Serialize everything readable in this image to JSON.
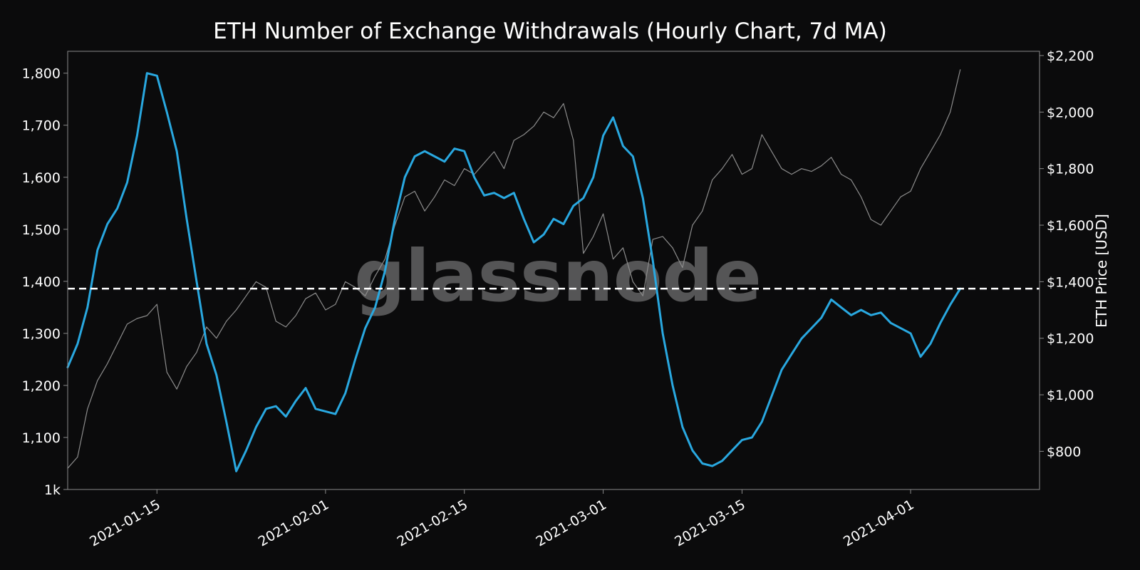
{
  "chart_data": {
    "type": "line",
    "title": "ETH Number of Exchange Withdrawals (Hourly Chart, 7d MA)",
    "watermark": "glassnode",
    "xlabel": "",
    "ylabel_left": "",
    "ylabel_right": "ETH Price [USD]",
    "grid": false,
    "x_range": [
      "2021-01-06",
      "2021-04-14"
    ],
    "x_ticks": [
      "2021-01-15",
      "2021-02-01",
      "2021-02-15",
      "2021-03-01",
      "2021-03-15",
      "2021-04-01"
    ],
    "y_left": {
      "ylim": [
        1000,
        1842
      ],
      "ticks": [
        1000,
        1100,
        1200,
        1300,
        1400,
        1500,
        1600,
        1700,
        1800
      ],
      "tick_labels": [
        "1k",
        "1,100",
        "1,200",
        "1,300",
        "1,400",
        "1,500",
        "1,600",
        "1,700",
        "1,800"
      ]
    },
    "y_right": {
      "ylim": [
        665,
        2215
      ],
      "ticks": [
        800,
        1000,
        1200,
        1400,
        1600,
        1800,
        2000,
        2200
      ],
      "tick_labels": [
        "$800",
        "$1,000",
        "$1,200",
        "$1,400",
        "$1,600",
        "$1,800",
        "$2,000",
        "$2,200"
      ]
    },
    "reference_line": {
      "axis": "left",
      "value": 1386,
      "style": "dashed",
      "color": "#ffffff"
    },
    "colors": {
      "background": "#0b0b0c",
      "withdrawals": "#29a8e0",
      "price": "#8c8c8c",
      "axes": "#8a8a8a",
      "text": "#ffffff",
      "watermark": "#5a5a5a"
    },
    "series": [
      {
        "axis": "left",
        "color": "#29a8e0",
        "points": [
          [
            "2021-01-06",
            1235
          ],
          [
            "2021-01-07",
            1280
          ],
          [
            "2021-01-08",
            1350
          ],
          [
            "2021-01-09",
            1460
          ],
          [
            "2021-01-10",
            1510
          ],
          [
            "2021-01-11",
            1540
          ],
          [
            "2021-01-12",
            1590
          ],
          [
            "2021-01-13",
            1680
          ],
          [
            "2021-01-14",
            1800
          ],
          [
            "2021-01-15",
            1795
          ],
          [
            "2021-01-16",
            1725
          ],
          [
            "2021-01-17",
            1650
          ],
          [
            "2021-01-18",
            1520
          ],
          [
            "2021-01-19",
            1400
          ],
          [
            "2021-01-20",
            1280
          ],
          [
            "2021-01-21",
            1220
          ],
          [
            "2021-01-22",
            1130
          ],
          [
            "2021-01-23",
            1035
          ],
          [
            "2021-01-24",
            1075
          ],
          [
            "2021-01-25",
            1120
          ],
          [
            "2021-01-26",
            1155
          ],
          [
            "2021-01-27",
            1160
          ],
          [
            "2021-01-28",
            1140
          ],
          [
            "2021-01-29",
            1170
          ],
          [
            "2021-01-30",
            1195
          ],
          [
            "2021-01-31",
            1155
          ],
          [
            "2021-02-01",
            1150
          ],
          [
            "2021-02-02",
            1145
          ],
          [
            "2021-02-03",
            1185
          ],
          [
            "2021-02-04",
            1250
          ],
          [
            "2021-02-05",
            1310
          ],
          [
            "2021-02-06",
            1350
          ],
          [
            "2021-02-07",
            1420
          ],
          [
            "2021-02-08",
            1520
          ],
          [
            "2021-02-09",
            1600
          ],
          [
            "2021-02-10",
            1640
          ],
          [
            "2021-02-11",
            1650
          ],
          [
            "2021-02-12",
            1640
          ],
          [
            "2021-02-13",
            1630
          ],
          [
            "2021-02-14",
            1655
          ],
          [
            "2021-02-15",
            1650
          ],
          [
            "2021-02-16",
            1600
          ],
          [
            "2021-02-17",
            1565
          ],
          [
            "2021-02-18",
            1570
          ],
          [
            "2021-02-19",
            1560
          ],
          [
            "2021-02-20",
            1570
          ],
          [
            "2021-02-21",
            1520
          ],
          [
            "2021-02-22",
            1475
          ],
          [
            "2021-02-23",
            1490
          ],
          [
            "2021-02-24",
            1520
          ],
          [
            "2021-02-25",
            1510
          ],
          [
            "2021-02-26",
            1545
          ],
          [
            "2021-02-27",
            1560
          ],
          [
            "2021-02-28",
            1600
          ],
          [
            "2021-03-01",
            1680
          ],
          [
            "2021-03-02",
            1715
          ],
          [
            "2021-03-03",
            1660
          ],
          [
            "2021-03-04",
            1640
          ],
          [
            "2021-03-05",
            1560
          ],
          [
            "2021-03-06",
            1440
          ],
          [
            "2021-03-07",
            1300
          ],
          [
            "2021-03-08",
            1200
          ],
          [
            "2021-03-09",
            1120
          ],
          [
            "2021-03-10",
            1075
          ],
          [
            "2021-03-11",
            1050
          ],
          [
            "2021-03-12",
            1045
          ],
          [
            "2021-03-13",
            1055
          ],
          [
            "2021-03-14",
            1075
          ],
          [
            "2021-03-15",
            1095
          ],
          [
            "2021-03-16",
            1100
          ],
          [
            "2021-03-17",
            1130
          ],
          [
            "2021-03-18",
            1180
          ],
          [
            "2021-03-19",
            1230
          ],
          [
            "2021-03-20",
            1260
          ],
          [
            "2021-03-21",
            1290
          ],
          [
            "2021-03-22",
            1310
          ],
          [
            "2021-03-23",
            1330
          ],
          [
            "2021-03-24",
            1365
          ],
          [
            "2021-03-25",
            1350
          ],
          [
            "2021-03-26",
            1335
          ],
          [
            "2021-03-27",
            1345
          ],
          [
            "2021-03-28",
            1335
          ],
          [
            "2021-03-29",
            1340
          ],
          [
            "2021-03-30",
            1320
          ],
          [
            "2021-03-31",
            1310
          ],
          [
            "2021-04-01",
            1300
          ],
          [
            "2021-04-02",
            1255
          ],
          [
            "2021-04-03",
            1280
          ],
          [
            "2021-04-04",
            1320
          ],
          [
            "2021-04-05",
            1355
          ],
          [
            "2021-04-06",
            1386
          ]
        ]
      },
      {
        "axis": "right",
        "color": "#8c8c8c",
        "points": [
          [
            "2021-01-06",
            740
          ],
          [
            "2021-01-07",
            780
          ],
          [
            "2021-01-08",
            950
          ],
          [
            "2021-01-09",
            1050
          ],
          [
            "2021-01-10",
            1110
          ],
          [
            "2021-01-11",
            1180
          ],
          [
            "2021-01-12",
            1250
          ],
          [
            "2021-01-13",
            1270
          ],
          [
            "2021-01-14",
            1280
          ],
          [
            "2021-01-15",
            1320
          ],
          [
            "2021-01-16",
            1080
          ],
          [
            "2021-01-17",
            1020
          ],
          [
            "2021-01-18",
            1100
          ],
          [
            "2021-01-19",
            1150
          ],
          [
            "2021-01-20",
            1240
          ],
          [
            "2021-01-21",
            1200
          ],
          [
            "2021-01-22",
            1260
          ],
          [
            "2021-01-23",
            1300
          ],
          [
            "2021-01-24",
            1350
          ],
          [
            "2021-01-25",
            1400
          ],
          [
            "2021-01-26",
            1380
          ],
          [
            "2021-01-27",
            1260
          ],
          [
            "2021-01-28",
            1240
          ],
          [
            "2021-01-29",
            1280
          ],
          [
            "2021-01-30",
            1340
          ],
          [
            "2021-01-31",
            1360
          ],
          [
            "2021-02-01",
            1300
          ],
          [
            "2021-02-02",
            1320
          ],
          [
            "2021-02-03",
            1400
          ],
          [
            "2021-02-04",
            1380
          ],
          [
            "2021-02-05",
            1350
          ],
          [
            "2021-02-06",
            1420
          ],
          [
            "2021-02-07",
            1480
          ],
          [
            "2021-02-08",
            1600
          ],
          [
            "2021-02-09",
            1700
          ],
          [
            "2021-02-10",
            1720
          ],
          [
            "2021-02-11",
            1650
          ],
          [
            "2021-02-12",
            1700
          ],
          [
            "2021-02-13",
            1760
          ],
          [
            "2021-02-14",
            1740
          ],
          [
            "2021-02-15",
            1800
          ],
          [
            "2021-02-16",
            1780
          ],
          [
            "2021-02-17",
            1820
          ],
          [
            "2021-02-18",
            1860
          ],
          [
            "2021-02-19",
            1800
          ],
          [
            "2021-02-20",
            1900
          ],
          [
            "2021-02-21",
            1920
          ],
          [
            "2021-02-22",
            1950
          ],
          [
            "2021-02-23",
            2000
          ],
          [
            "2021-02-24",
            1980
          ],
          [
            "2021-02-25",
            2030
          ],
          [
            "2021-02-26",
            1900
          ],
          [
            "2021-02-27",
            1500
          ],
          [
            "2021-02-28",
            1560
          ],
          [
            "2021-03-01",
            1640
          ],
          [
            "2021-03-02",
            1480
          ],
          [
            "2021-03-03",
            1520
          ],
          [
            "2021-03-04",
            1400
          ],
          [
            "2021-03-05",
            1350
          ],
          [
            "2021-03-06",
            1550
          ],
          [
            "2021-03-07",
            1560
          ],
          [
            "2021-03-08",
            1520
          ],
          [
            "2021-03-09",
            1450
          ],
          [
            "2021-03-10",
            1600
          ],
          [
            "2021-03-11",
            1650
          ],
          [
            "2021-03-12",
            1760
          ],
          [
            "2021-03-13",
            1800
          ],
          [
            "2021-03-14",
            1850
          ],
          [
            "2021-03-15",
            1780
          ],
          [
            "2021-03-16",
            1800
          ],
          [
            "2021-03-17",
            1920
          ],
          [
            "2021-03-18",
            1860
          ],
          [
            "2021-03-19",
            1800
          ],
          [
            "2021-03-20",
            1780
          ],
          [
            "2021-03-21",
            1800
          ],
          [
            "2021-03-22",
            1790
          ],
          [
            "2021-03-23",
            1810
          ],
          [
            "2021-03-24",
            1840
          ],
          [
            "2021-03-25",
            1780
          ],
          [
            "2021-03-26",
            1760
          ],
          [
            "2021-03-27",
            1700
          ],
          [
            "2021-03-28",
            1620
          ],
          [
            "2021-03-29",
            1600
          ],
          [
            "2021-03-30",
            1650
          ],
          [
            "2021-03-31",
            1700
          ],
          [
            "2021-04-01",
            1720
          ],
          [
            "2021-04-02",
            1800
          ],
          [
            "2021-04-03",
            1860
          ],
          [
            "2021-04-04",
            1920
          ],
          [
            "2021-04-05",
            2000
          ],
          [
            "2021-04-06",
            2150
          ]
        ]
      }
    ]
  }
}
